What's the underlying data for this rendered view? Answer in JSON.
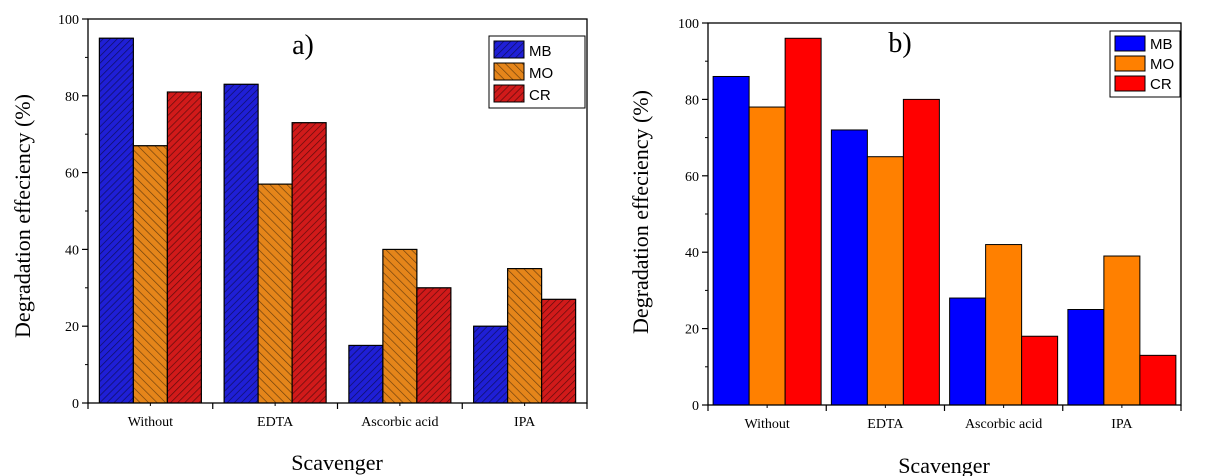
{
  "chart_data": [
    {
      "type": "bar",
      "panel_label": "a)",
      "categories": [
        "Without",
        "EDTA",
        "Ascorbic acid",
        "IPA"
      ],
      "series": [
        {
          "name": "MB",
          "values": [
            95,
            83,
            15,
            20
          ],
          "color": "#1f1fd6"
        },
        {
          "name": "MO",
          "values": [
            67,
            57,
            40,
            35
          ],
          "color": "#e5851a"
        },
        {
          "name": "CR",
          "values": [
            81,
            73,
            30,
            27
          ],
          "color": "#d11a1a"
        }
      ],
      "xlabel": "Scavenger",
      "ylabel": "Degradation effeciency (%)",
      "ylim": [
        0,
        100
      ],
      "yticks": [
        "0",
        "20",
        "40",
        "60",
        "80",
        "100"
      ],
      "hatched": true,
      "legend_position": "top-right"
    },
    {
      "type": "bar",
      "panel_label": "b)",
      "categories": [
        "Without",
        "EDTA",
        "Ascorbic acid",
        "IPA"
      ],
      "series": [
        {
          "name": "MB",
          "values": [
            86,
            72,
            28,
            25
          ],
          "color": "#0000ff"
        },
        {
          "name": "MO",
          "values": [
            78,
            65,
            42,
            39
          ],
          "color": "#ff8000"
        },
        {
          "name": "CR",
          "values": [
            96,
            80,
            18,
            13
          ],
          "color": "#ff0000"
        }
      ],
      "xlabel": "Scavenger",
      "ylabel": "Degradation effeciency (%)",
      "ylim": [
        0,
        100
      ],
      "yticks": [
        "0",
        "20",
        "40",
        "60",
        "80",
        "100"
      ],
      "hatched": false,
      "legend_position": "top-right"
    }
  ]
}
